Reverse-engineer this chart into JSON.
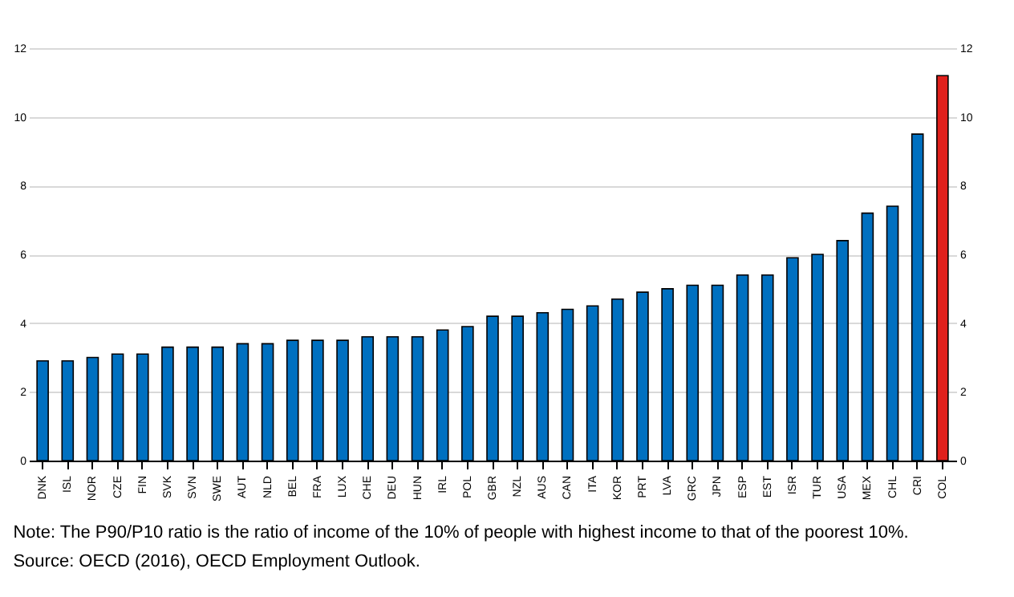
{
  "chart_data": {
    "type": "bar",
    "categories": [
      "DNK",
      "ISL",
      "NOR",
      "CZE",
      "FIN",
      "SVK",
      "SVN",
      "SWE",
      "AUT",
      "NLD",
      "BEL",
      "FRA",
      "LUX",
      "CHE",
      "DEU",
      "HUN",
      "IRL",
      "POL",
      "GBR",
      "NZL",
      "AUS",
      "CAN",
      "ITA",
      "KOR",
      "PRT",
      "LVA",
      "GRC",
      "JPN",
      "ESP",
      "EST",
      "ISR",
      "TUR",
      "USA",
      "MEX",
      "CHL",
      "CRI",
      "COL"
    ],
    "values": [
      2.9,
      2.9,
      3.0,
      3.1,
      3.1,
      3.3,
      3.3,
      3.3,
      3.4,
      3.4,
      3.5,
      3.5,
      3.5,
      3.6,
      3.6,
      3.6,
      3.8,
      3.9,
      4.2,
      4.2,
      4.3,
      4.4,
      4.5,
      4.7,
      4.9,
      5.0,
      5.1,
      5.1,
      5.4,
      5.4,
      5.9,
      6.0,
      6.4,
      7.2,
      7.4,
      9.5,
      11.2
    ],
    "colors": [
      "#0070c0",
      "#0070c0",
      "#0070c0",
      "#0070c0",
      "#0070c0",
      "#0070c0",
      "#0070c0",
      "#0070c0",
      "#0070c0",
      "#0070c0",
      "#0070c0",
      "#0070c0",
      "#0070c0",
      "#0070c0",
      "#0070c0",
      "#0070c0",
      "#0070c0",
      "#0070c0",
      "#0070c0",
      "#0070c0",
      "#0070c0",
      "#0070c0",
      "#0070c0",
      "#0070c0",
      "#0070c0",
      "#0070c0",
      "#0070c0",
      "#0070c0",
      "#0070c0",
      "#0070c0",
      "#0070c0",
      "#0070c0",
      "#0070c0",
      "#0070c0",
      "#0070c0",
      "#0070c0",
      "#e0201c"
    ],
    "ylim": [
      0,
      12
    ],
    "yticks": [
      0,
      2,
      4,
      6,
      8,
      10,
      12
    ],
    "y2lim": [
      0,
      12
    ],
    "y2ticks": [
      0,
      2,
      4,
      6,
      8,
      10,
      12
    ],
    "grid": "y",
    "annotations": [
      "Note: The P90/P10 ratio is the ratio of income of the 10% of people with highest income to that of the poorest 10%.",
      "Source: OECD (2016), OECD Employment Outlook."
    ]
  }
}
